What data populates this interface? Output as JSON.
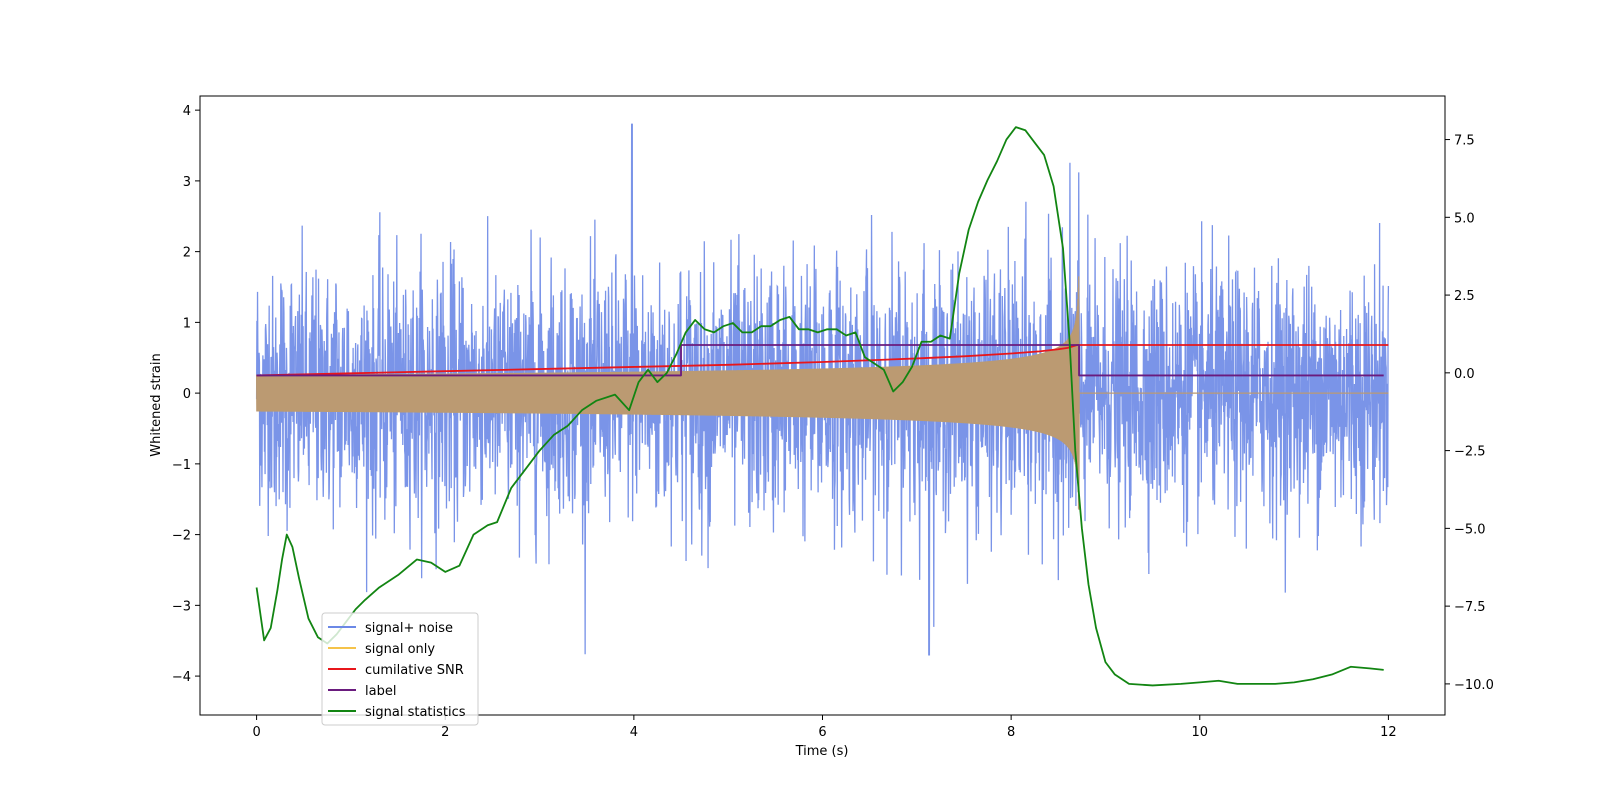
{
  "chart_data": {
    "type": "line",
    "title": "",
    "xlabel": "Time (s)",
    "ylabel": "Whitened strain",
    "y2label": "",
    "xlim": [
      -0.6,
      12.6
    ],
    "ylim": [
      -4.55,
      4.2
    ],
    "y2lim": [
      -11.0,
      8.9
    ],
    "xticks": [
      0,
      2,
      4,
      6,
      8,
      10,
      12
    ],
    "xtick_labels": [
      "0",
      "2",
      "4",
      "6",
      "8",
      "10",
      "12"
    ],
    "yticks": [
      -4,
      -3,
      -2,
      -1,
      0,
      1,
      2,
      3,
      4
    ],
    "ytick_labels": [
      "−4",
      "−3",
      "−2",
      "−1",
      "0",
      "1",
      "2",
      "3",
      "4"
    ],
    "y2ticks": [
      -10,
      -7.5,
      -5,
      -2.5,
      0,
      2.5,
      5,
      7.5
    ],
    "y2tick_labels": [
      "−10.0",
      "−7.5",
      "−5.0",
      "−2.5",
      "0.0",
      "2.5",
      "5.0",
      "7.5"
    ],
    "grid": false,
    "legend_position": "lower-left",
    "series": [
      {
        "name": "signal+ noise",
        "color": "#6b88e6",
        "axis": "left",
        "kind": "noise",
        "x_start": 0,
        "x_end": 12,
        "typical_envelope": 1.7,
        "max_value": 3.8,
        "min_value": -3.7
      },
      {
        "name": "signal only",
        "color": "#f5c34a",
        "axis": "left",
        "kind": "chirp",
        "x_start": 0,
        "x_end": 12,
        "merger_time": 8.72,
        "amplitude_at_start": 0.08,
        "amplitude_near_merger": 1.0,
        "peak_value": 1.65
      },
      {
        "name": "cumilative SNR",
        "color": "#e8161b",
        "axis": "left",
        "x": [
          0,
          1,
          2,
          3,
          4,
          5,
          6,
          7,
          7.5,
          8,
          8.3,
          8.5,
          8.6,
          8.7,
          12
        ],
        "values": [
          0.25,
          0.28,
          0.31,
          0.34,
          0.37,
          0.4,
          0.44,
          0.49,
          0.52,
          0.56,
          0.59,
          0.62,
          0.64,
          0.68,
          0.68
        ]
      },
      {
        "name": "label",
        "color": "#6a1b7e",
        "axis": "left",
        "x": [
          0,
          4.5,
          4.5,
          8.72,
          8.72,
          11.95
        ],
        "values": [
          0.25,
          0.25,
          0.68,
          0.68,
          0.25,
          0.25
        ]
      },
      {
        "name": "signal statistics",
        "color": "#128512",
        "axis": "right",
        "x": [
          0,
          0.08,
          0.15,
          0.22,
          0.27,
          0.32,
          0.38,
          0.45,
          0.55,
          0.65,
          0.75,
          0.85,
          0.95,
          1.05,
          1.15,
          1.3,
          1.5,
          1.7,
          1.85,
          2.0,
          2.15,
          2.3,
          2.45,
          2.55,
          2.7,
          2.85,
          3.0,
          3.15,
          3.3,
          3.45,
          3.6,
          3.8,
          3.95,
          4.05,
          4.15,
          4.25,
          4.35,
          4.45,
          4.55,
          4.65,
          4.75,
          4.85,
          4.95,
          5.05,
          5.15,
          5.25,
          5.35,
          5.45,
          5.55,
          5.65,
          5.75,
          5.85,
          5.95,
          6.05,
          6.15,
          6.25,
          6.35,
          6.45,
          6.55,
          6.65,
          6.75,
          6.85,
          6.95,
          7.05,
          7.15,
          7.25,
          7.35,
          7.45,
          7.55,
          7.65,
          7.75,
          7.85,
          7.95,
          8.05,
          8.15,
          8.25,
          8.35,
          8.45,
          8.55,
          8.62,
          8.68,
          8.75,
          8.82,
          8.9,
          9.0,
          9.1,
          9.25,
          9.5,
          9.8,
          10.0,
          10.2,
          10.4,
          10.6,
          10.8,
          11.0,
          11.2,
          11.4,
          11.6,
          11.8,
          11.95
        ],
        "values": [
          -6.9,
          -8.6,
          -8.2,
          -7.0,
          -6.0,
          -5.2,
          -5.6,
          -6.6,
          -7.9,
          -8.5,
          -8.7,
          -8.4,
          -8.0,
          -7.6,
          -7.3,
          -6.9,
          -6.5,
          -6.0,
          -6.1,
          -6.4,
          -6.2,
          -5.2,
          -4.9,
          -4.8,
          -3.7,
          -3.1,
          -2.5,
          -2.0,
          -1.7,
          -1.2,
          -0.9,
          -0.7,
          -1.2,
          -0.3,
          0.1,
          -0.3,
          0.0,
          0.6,
          1.3,
          1.7,
          1.4,
          1.3,
          1.5,
          1.6,
          1.3,
          1.3,
          1.5,
          1.5,
          1.7,
          1.8,
          1.4,
          1.4,
          1.3,
          1.4,
          1.4,
          1.2,
          1.3,
          0.5,
          0.3,
          0.1,
          -0.6,
          -0.3,
          0.2,
          1.0,
          1.0,
          1.2,
          1.1,
          3.2,
          4.6,
          5.5,
          6.2,
          6.8,
          7.5,
          7.9,
          7.8,
          7.4,
          7.0,
          6.0,
          4.0,
          1.0,
          -2.5,
          -5.0,
          -6.8,
          -8.2,
          -9.3,
          -9.7,
          -10.0,
          -10.05,
          -10.0,
          -9.95,
          -9.9,
          -10.0,
          -10.0,
          -10.0,
          -9.95,
          -9.85,
          -9.7,
          -9.45,
          -9.5,
          -9.55
        ]
      }
    ]
  }
}
